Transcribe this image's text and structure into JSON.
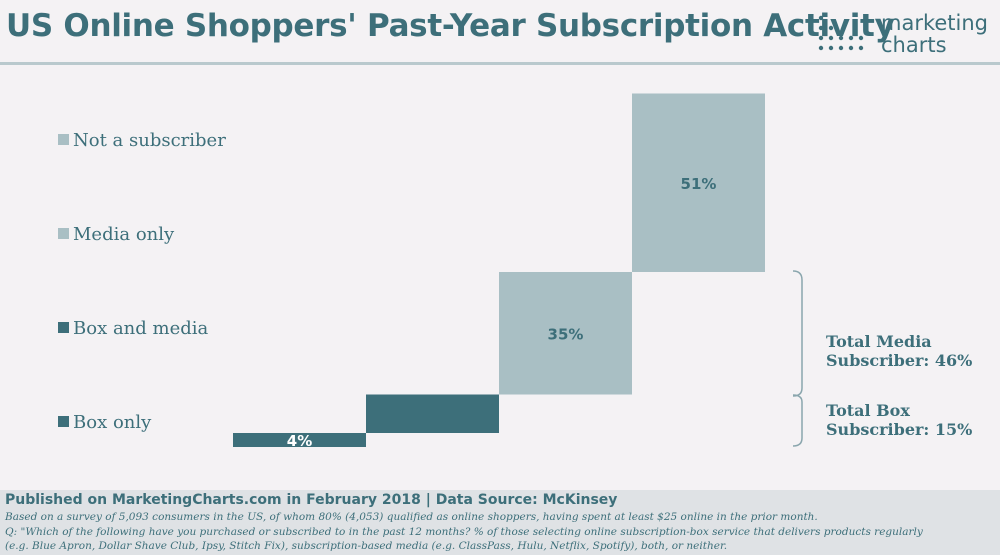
{
  "header": {
    "title": "US Online Shoppers' Past-Year Subscription Activity",
    "logo_line1": "marketing",
    "logo_line2": "charts"
  },
  "chart_data": {
    "type": "bar",
    "title": "US Online Shoppers' Past-Year Subscription Activity",
    "categories": [
      "Not a subscriber",
      "Media only",
      "Box and media",
      "Box only"
    ],
    "values": [
      51,
      35,
      11,
      4
    ],
    "value_labels": [
      "51%",
      "35%",
      "",
      "4%"
    ],
    "colors": [
      "#a9bfc4",
      "#a9bfc4",
      "#3d6f7a",
      "#3d6f7a"
    ],
    "legend_position": "left",
    "grid": false,
    "annotations": [
      {
        "label_line1": "Total Media",
        "label_line2": "Subscriber: 46%",
        "covers": [
          "Media only",
          "Box and media"
        ]
      },
      {
        "label_line1": "Total Box",
        "label_line2": "Subscriber: 15%",
        "covers": [
          "Box and media",
          "Box only"
        ]
      }
    ]
  },
  "footer": {
    "source": "Published on MarketingCharts.com in February 2018 | Data Source: McKinsey",
    "note1": "Based on a survey of 5,093 consumers in the US, of whom 80% (4,053) qualified as online shoppers, having spent at least $25 online in the prior month.",
    "note2": "Q: \"Which of the following have you purchased or subscribed to in the past 12 months? % of those selecting online subscription-box service that delivers products regularly",
    "note3": "(e.g. Blue Apron, Dollar Shave Club, Ipsy, Stitch Fix), subscription-based media (e.g. ClassPass, Hulu, Netflix, Spotify), both, or neither."
  }
}
